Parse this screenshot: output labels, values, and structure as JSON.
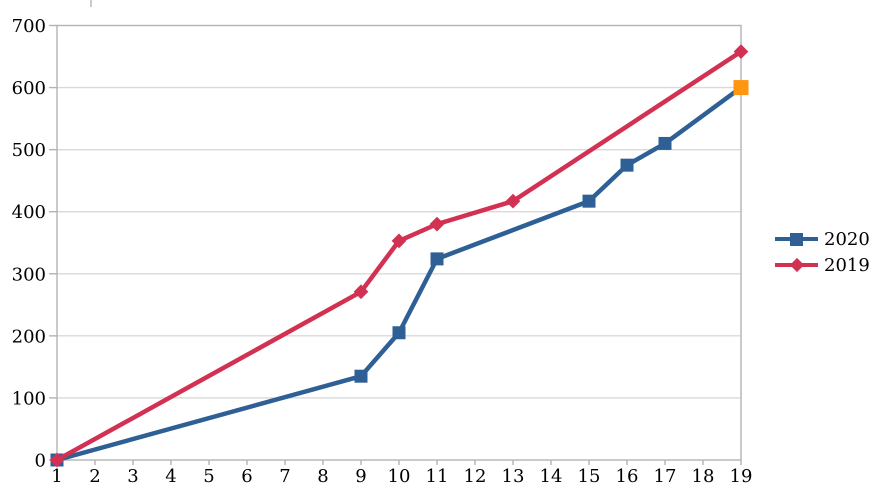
{
  "chart_data": {
    "type": "line",
    "title": "",
    "xlabel": "",
    "ylabel": "",
    "x_axis": {
      "min": 1,
      "max": 19,
      "tick_step": 1,
      "labels": [
        "1",
        "2",
        "3",
        "4",
        "5",
        "6",
        "7",
        "8",
        "9",
        "10",
        "11",
        "12",
        "13",
        "14",
        "15",
        "16",
        "17",
        "18",
        "19"
      ]
    },
    "y_axis": {
      "min": 0,
      "max": 700,
      "tick_step": 100,
      "labels": [
        "0",
        "100",
        "200",
        "300",
        "400",
        "500",
        "600",
        "700"
      ]
    },
    "grid": true,
    "legend_position": "right",
    "series": [
      {
        "name": "2020",
        "color": "#2E6095",
        "marker": "square",
        "points": [
          {
            "x": 1,
            "y": 0
          },
          {
            "x": 9,
            "y": 135
          },
          {
            "x": 10,
            "y": 205
          },
          {
            "x": 11,
            "y": 324
          },
          {
            "x": 15,
            "y": 417
          },
          {
            "x": 16,
            "y": 475
          },
          {
            "x": 17,
            "y": 510
          },
          {
            "x": 19,
            "y": 600
          }
        ]
      },
      {
        "name": "2019",
        "color": "#D23152",
        "marker": "diamond",
        "points": [
          {
            "x": 1,
            "y": 0
          },
          {
            "x": 9,
            "y": 271
          },
          {
            "x": 10,
            "y": 353
          },
          {
            "x": 11,
            "y": 380
          },
          {
            "x": 13,
            "y": 417
          },
          {
            "x": 19,
            "y": 658
          }
        ]
      }
    ],
    "highlighted_point": {
      "series": "2020",
      "x": 19,
      "y": 600,
      "color": "#FF9611",
      "marker": "square"
    },
    "colors": {
      "gridline": "#D9D9D9",
      "plot_border": "#B3B3B3",
      "tick": "#B3B3B3",
      "label": "#000000",
      "background": "#FFFFFF"
    }
  }
}
